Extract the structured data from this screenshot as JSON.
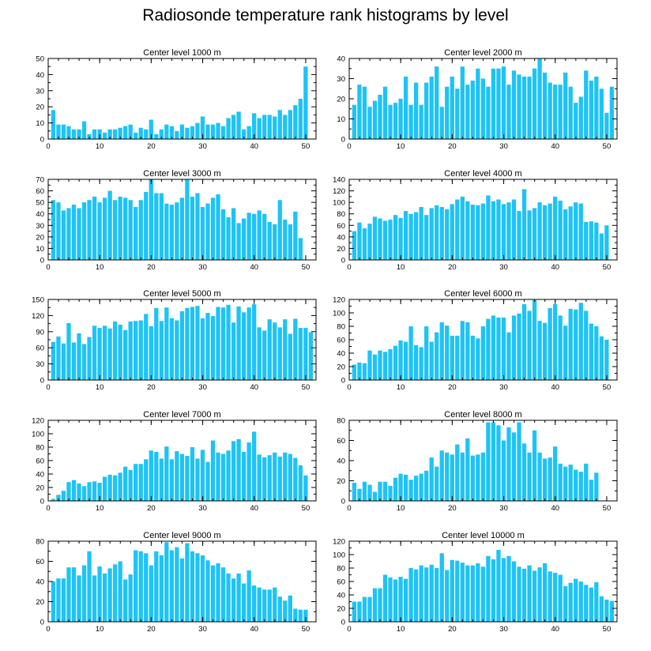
{
  "title": "Radiosonde temperature rank histograms by level",
  "colors": {
    "bar": "#1ec3f5",
    "axis": "#000000",
    "background": "#ffffff"
  },
  "chart_data": [
    {
      "type": "bar",
      "title": "Center level 1000 m",
      "xlim": [
        0,
        52
      ],
      "ylim": [
        0,
        50
      ],
      "xticks": [
        0,
        10,
        20,
        30,
        40,
        50
      ],
      "yticks": [
        0,
        10,
        20,
        30,
        40,
        50
      ],
      "values": [
        18,
        9,
        9,
        8,
        6,
        6,
        11,
        3,
        6,
        6,
        4,
        6,
        6,
        7,
        8,
        9,
        4,
        7,
        6,
        12,
        3,
        6,
        9,
        8,
        5,
        9,
        7,
        8,
        10,
        14,
        9,
        9,
        10,
        8,
        13,
        15,
        17,
        6,
        8,
        16,
        13,
        15,
        15,
        14,
        18,
        15,
        18,
        21,
        25,
        45
      ]
    },
    {
      "type": "bar",
      "title": "Center level 2000 m",
      "xlim": [
        0,
        52
      ],
      "ylim": [
        0,
        40
      ],
      "xticks": [
        0,
        10,
        20,
        30,
        40,
        50
      ],
      "yticks": [
        0,
        10,
        20,
        30,
        40
      ],
      "values": [
        17,
        27,
        26,
        16,
        19,
        22,
        26,
        17,
        18,
        20,
        31,
        17,
        28,
        17,
        28,
        31,
        36,
        16,
        26,
        31,
        25,
        36,
        27,
        29,
        35,
        30,
        26,
        35,
        35,
        36,
        27,
        34,
        32,
        31,
        31,
        35,
        40,
        33,
        28,
        27,
        27,
        33,
        26,
        18,
        21,
        34,
        29,
        31,
        25,
        13,
        26
      ]
    },
    {
      "type": "bar",
      "title": "Center level 3000 m",
      "xlim": [
        0,
        52
      ],
      "ylim": [
        0,
        70
      ],
      "xticks": [
        0,
        10,
        20,
        30,
        40,
        50
      ],
      "yticks": [
        0,
        10,
        20,
        30,
        40,
        50,
        60,
        70
      ],
      "values": [
        52,
        50,
        43,
        45,
        48,
        45,
        50,
        52,
        55,
        50,
        54,
        60,
        52,
        55,
        54,
        52,
        46,
        52,
        59,
        70,
        58,
        58,
        49,
        48,
        50,
        54,
        70,
        55,
        58,
        46,
        49,
        54,
        57,
        44,
        37,
        45,
        32,
        36,
        41,
        40,
        43,
        40,
        33,
        31,
        52,
        35,
        31,
        42,
        19
      ]
    },
    {
      "type": "bar",
      "title": "Center level 4000 m",
      "xlim": [
        0,
        52
      ],
      "ylim": [
        0,
        140
      ],
      "xticks": [
        0,
        10,
        20,
        30,
        40,
        50
      ],
      "yticks": [
        0,
        20,
        40,
        60,
        80,
        100,
        120,
        140
      ],
      "values": [
        50,
        65,
        55,
        63,
        75,
        72,
        68,
        70,
        78,
        73,
        85,
        80,
        83,
        92,
        78,
        90,
        95,
        92,
        88,
        97,
        105,
        110,
        102,
        96,
        95,
        98,
        112,
        102,
        105,
        97,
        100,
        105,
        85,
        123,
        86,
        90,
        100,
        95,
        98,
        110,
        103,
        88,
        93,
        100,
        98,
        66,
        67,
        65,
        46,
        60
      ]
    },
    {
      "type": "bar",
      "title": "Center level 5000 m",
      "xlim": [
        0,
        52
      ],
      "ylim": [
        0,
        150
      ],
      "xticks": [
        0,
        10,
        20,
        30,
        40,
        50
      ],
      "yticks": [
        0,
        30,
        60,
        90,
        120,
        150
      ],
      "values": [
        71,
        81,
        68,
        106,
        70,
        87,
        67,
        80,
        101,
        97,
        101,
        96,
        109,
        103,
        93,
        109,
        110,
        111,
        123,
        100,
        134,
        110,
        135,
        115,
        111,
        128,
        134,
        136,
        138,
        115,
        125,
        119,
        136,
        135,
        140,
        107,
        137,
        126,
        135,
        141,
        98,
        92,
        113,
        107,
        98,
        113,
        86,
        114,
        97,
        97,
        89
      ]
    },
    {
      "type": "bar",
      "title": "Center level 6000 m",
      "xlim": [
        0,
        52
      ],
      "ylim": [
        0,
        120
      ],
      "xticks": [
        0,
        10,
        20,
        30,
        40,
        50
      ],
      "yticks": [
        0,
        20,
        40,
        60,
        80,
        100,
        120
      ],
      "values": [
        23,
        26,
        25,
        44,
        38,
        44,
        42,
        46,
        51,
        59,
        57,
        80,
        52,
        49,
        80,
        57,
        71,
        86,
        81,
        66,
        66,
        88,
        86,
        66,
        62,
        80,
        91,
        96,
        93,
        93,
        71,
        96,
        99,
        113,
        103,
        119,
        88,
        85,
        107,
        113,
        96,
        81,
        106,
        105,
        115,
        103,
        84,
        80,
        65,
        60
      ]
    },
    {
      "type": "bar",
      "title": "Center level 7000 m",
      "xlim": [
        0,
        52
      ],
      "ylim": [
        0,
        120
      ],
      "xticks": [
        0,
        10,
        20,
        30,
        40,
        50
      ],
      "yticks": [
        0,
        20,
        40,
        60,
        80,
        100,
        120
      ],
      "values": [
        3,
        9,
        15,
        28,
        31,
        26,
        22,
        28,
        29,
        27,
        36,
        39,
        38,
        42,
        51,
        46,
        55,
        55,
        62,
        75,
        73,
        63,
        81,
        62,
        74,
        70,
        67,
        80,
        63,
        76,
        58,
        90,
        72,
        70,
        75,
        89,
        92,
        73,
        87,
        103,
        69,
        65,
        68,
        72,
        66,
        72,
        70,
        64,
        53,
        38
      ]
    },
    {
      "type": "bar",
      "title": "Center level 8000 m",
      "xlim": [
        0,
        52
      ],
      "ylim": [
        0,
        80
      ],
      "xticks": [
        0,
        10,
        20,
        30,
        40,
        50
      ],
      "yticks": [
        0,
        20,
        40,
        60,
        80
      ],
      "values": [
        18,
        12,
        19,
        16,
        9,
        19,
        19,
        15,
        23,
        27,
        26,
        21,
        25,
        27,
        30,
        43,
        34,
        50,
        48,
        46,
        56,
        48,
        62,
        45,
        46,
        48,
        78,
        78,
        75,
        60,
        73,
        68,
        78,
        57,
        48,
        70,
        48,
        42,
        43,
        54,
        37,
        34,
        36,
        31,
        29,
        37,
        21,
        28
      ]
    },
    {
      "type": "bar",
      "title": "Center level 9000 m",
      "xlim": [
        0,
        52
      ],
      "ylim": [
        0,
        80
      ],
      "xticks": [
        0,
        10,
        20,
        30,
        40,
        50
      ],
      "yticks": [
        0,
        20,
        40,
        60,
        80
      ],
      "values": [
        40,
        43,
        43,
        54,
        54,
        46,
        56,
        70,
        46,
        55,
        48,
        53,
        57,
        60,
        42,
        47,
        71,
        70,
        68,
        56,
        70,
        66,
        79,
        71,
        74,
        63,
        78,
        70,
        68,
        66,
        61,
        56,
        58,
        54,
        48,
        43,
        48,
        38,
        51,
        36,
        34,
        32,
        32,
        34,
        25,
        21,
        26,
        13,
        12,
        12
      ]
    },
    {
      "type": "bar",
      "title": "Center level 10000 m",
      "xlim": [
        0,
        52
      ],
      "ylim": [
        0,
        120
      ],
      "xticks": [
        0,
        10,
        20,
        30,
        40,
        50
      ],
      "yticks": [
        0,
        20,
        40,
        60,
        80,
        100,
        120
      ],
      "values": [
        30,
        30,
        37,
        37,
        50,
        50,
        70,
        66,
        63,
        67,
        64,
        80,
        78,
        84,
        81,
        85,
        80,
        102,
        77,
        92,
        91,
        88,
        84,
        84,
        87,
        82,
        98,
        93,
        107,
        95,
        98,
        90,
        82,
        79,
        84,
        76,
        81,
        87,
        75,
        73,
        70,
        53,
        58,
        64,
        60,
        55,
        51,
        59,
        38,
        33,
        31
      ]
    }
  ]
}
